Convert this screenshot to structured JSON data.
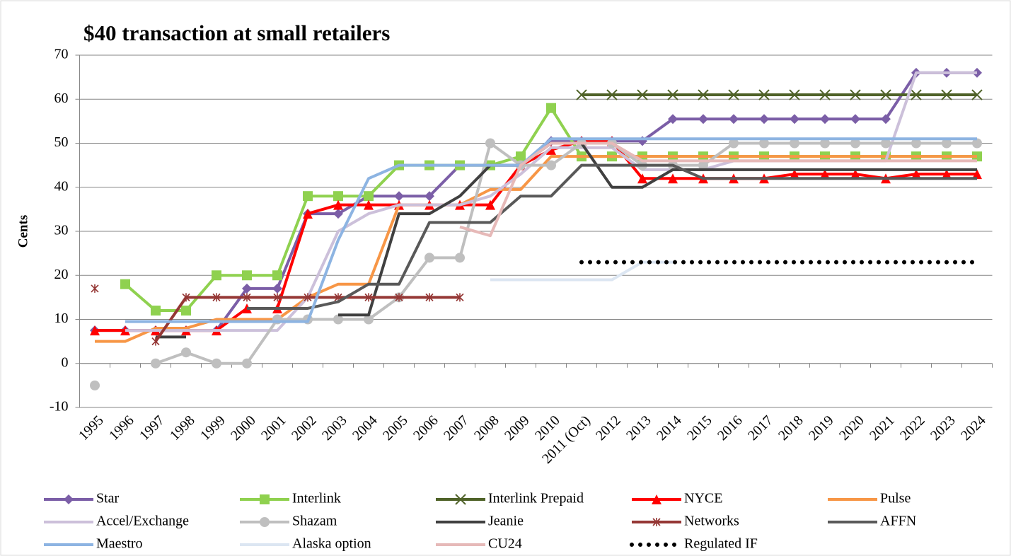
{
  "chart_data": {
    "type": "line",
    "title": "$40 transaction at small retailers",
    "y_label": "Cents",
    "categories": [
      "1995",
      "1996",
      "1997",
      "1998",
      "1999",
      "2000",
      "2001",
      "2002",
      "2003",
      "2004",
      "2005",
      "2006",
      "2007",
      "2008",
      "2009",
      "2010",
      "2011 (Oct)",
      "2012",
      "2013",
      "2014",
      "2015",
      "2016",
      "2017",
      "2018",
      "2019",
      "2020",
      "2021",
      "2022",
      "2023",
      "2024"
    ],
    "ylim": [
      -10,
      70
    ],
    "yticks": [
      -10,
      0,
      10,
      20,
      30,
      40,
      50,
      60,
      70
    ],
    "grid": true,
    "series": [
      {
        "name": "Star",
        "color": "#7b5ea7",
        "marker": "diamond",
        "values": [
          7.5,
          7.5,
          7.5,
          7.5,
          7.5,
          17,
          17,
          34,
          34,
          38,
          38,
          38,
          45,
          45,
          45,
          50.5,
          50.5,
          50.5,
          50.5,
          55.5,
          55.5,
          55.5,
          55.5,
          55.5,
          55.5,
          55.5,
          55.5,
          66,
          66,
          66
        ]
      },
      {
        "name": "Interlink",
        "color": "#8fd14f",
        "marker": "square",
        "values": [
          null,
          18,
          12,
          12,
          20,
          20,
          20,
          38,
          38,
          38,
          45,
          45,
          45,
          45,
          47,
          58,
          47,
          47,
          47,
          47,
          47,
          47,
          47,
          47,
          47,
          47,
          47,
          47,
          47,
          47
        ]
      },
      {
        "name": "Interlink Prepaid",
        "color": "#4f6228",
        "marker": "x",
        "values": [
          null,
          null,
          null,
          null,
          null,
          null,
          null,
          null,
          null,
          null,
          null,
          null,
          null,
          null,
          null,
          null,
          61,
          61,
          61,
          61,
          61,
          61,
          61,
          61,
          61,
          61,
          61,
          61,
          61,
          61
        ]
      },
      {
        "name": "NYCE",
        "color": "#ff0000",
        "marker": "triangle",
        "values": [
          7.5,
          7.5,
          7.5,
          7.5,
          7.5,
          12.5,
          12.5,
          34,
          36,
          36,
          36,
          36,
          36,
          36,
          45,
          48.5,
          50.5,
          50.5,
          42,
          42,
          42,
          42,
          42,
          43,
          43,
          43,
          42,
          43,
          43,
          43
        ]
      },
      {
        "name": "Pulse",
        "color": "#f79646",
        "marker": "none",
        "values": [
          5,
          5,
          8,
          8,
          10,
          10,
          10,
          15,
          18,
          18,
          36,
          36,
          36,
          39.5,
          39.5,
          47,
          47,
          47,
          47,
          47,
          47,
          47,
          47,
          47,
          47,
          47,
          47,
          47,
          47,
          47
        ]
      },
      {
        "name": "Accel/Exchange",
        "color": "#ccc0da",
        "marker": "none",
        "values": [
          null,
          7.5,
          7.5,
          7.5,
          7.5,
          7.5,
          7.5,
          15,
          30,
          34,
          36,
          36,
          36,
          38,
          43,
          49,
          49,
          49,
          44,
          44,
          44,
          46,
          46,
          46,
          46,
          46,
          46,
          66,
          66,
          66
        ]
      },
      {
        "name": "Shazam",
        "color": "#bfbfbf",
        "marker": "circle",
        "values": [
          -5,
          null,
          0,
          2.5,
          0,
          0,
          10,
          10,
          10,
          10,
          15,
          24,
          24,
          50,
          45,
          45,
          50,
          50,
          45,
          45,
          45,
          50,
          50,
          50,
          50,
          50,
          50,
          50,
          50,
          50
        ]
      },
      {
        "name": "Jeanie",
        "color": "#404040",
        "marker": "none",
        "values": [
          null,
          null,
          6,
          6,
          null,
          null,
          null,
          null,
          11,
          11,
          34,
          34,
          38,
          45,
          45,
          50,
          50,
          40,
          40,
          44,
          44,
          44,
          44,
          44,
          44,
          44,
          44,
          44,
          44,
          44
        ]
      },
      {
        "name": "Networks",
        "color": "#953735",
        "marker": "asterisk",
        "values": [
          17,
          null,
          5,
          15,
          15,
          15,
          15,
          15,
          15,
          15,
          15,
          15,
          15,
          null,
          null,
          null,
          null,
          null,
          null,
          null,
          null,
          null,
          null,
          null,
          null,
          null,
          null,
          null,
          null,
          null
        ]
      },
      {
        "name": "AFFN",
        "color": "#595959",
        "marker": "none",
        "values": [
          null,
          null,
          null,
          null,
          null,
          12.5,
          12.5,
          12.5,
          14,
          18,
          18,
          32,
          32,
          32,
          38,
          38,
          45,
          45,
          45,
          45,
          42,
          42,
          42,
          42,
          42,
          42,
          42,
          42,
          42,
          42
        ]
      },
      {
        "name": "Maestro",
        "color": "#8db4e2",
        "marker": "none",
        "values": [
          null,
          9.5,
          9.5,
          9.5,
          9.5,
          9.5,
          9.5,
          9.5,
          28,
          42,
          45,
          45,
          45,
          45,
          45,
          51,
          51,
          51,
          51,
          51,
          51,
          51,
          51,
          51,
          51,
          51,
          51,
          51,
          51,
          51
        ]
      },
      {
        "name": "Alaska option",
        "color": "#dce6f2",
        "marker": "none",
        "values": [
          null,
          null,
          null,
          null,
          null,
          null,
          null,
          null,
          null,
          null,
          null,
          null,
          null,
          19,
          19,
          19,
          19,
          19,
          23,
          23,
          null,
          null,
          null,
          null,
          null,
          null,
          null,
          null,
          null,
          null
        ]
      },
      {
        "name": "CU24",
        "color": "#e6b9b8",
        "marker": "none",
        "values": [
          null,
          null,
          null,
          null,
          null,
          null,
          null,
          null,
          null,
          null,
          null,
          null,
          31,
          29,
          45,
          50,
          50,
          50,
          46,
          46,
          46,
          46,
          46,
          46,
          46,
          46,
          46,
          46,
          46,
          46
        ]
      },
      {
        "name": "Regulated IF",
        "color": "#000000",
        "marker": "none",
        "dash": "dotted",
        "values": [
          null,
          null,
          null,
          null,
          null,
          null,
          null,
          null,
          null,
          null,
          null,
          null,
          null,
          null,
          null,
          null,
          23,
          23,
          23,
          23,
          23,
          23,
          23,
          23,
          23,
          23,
          23,
          23,
          23,
          23
        ]
      }
    ]
  }
}
